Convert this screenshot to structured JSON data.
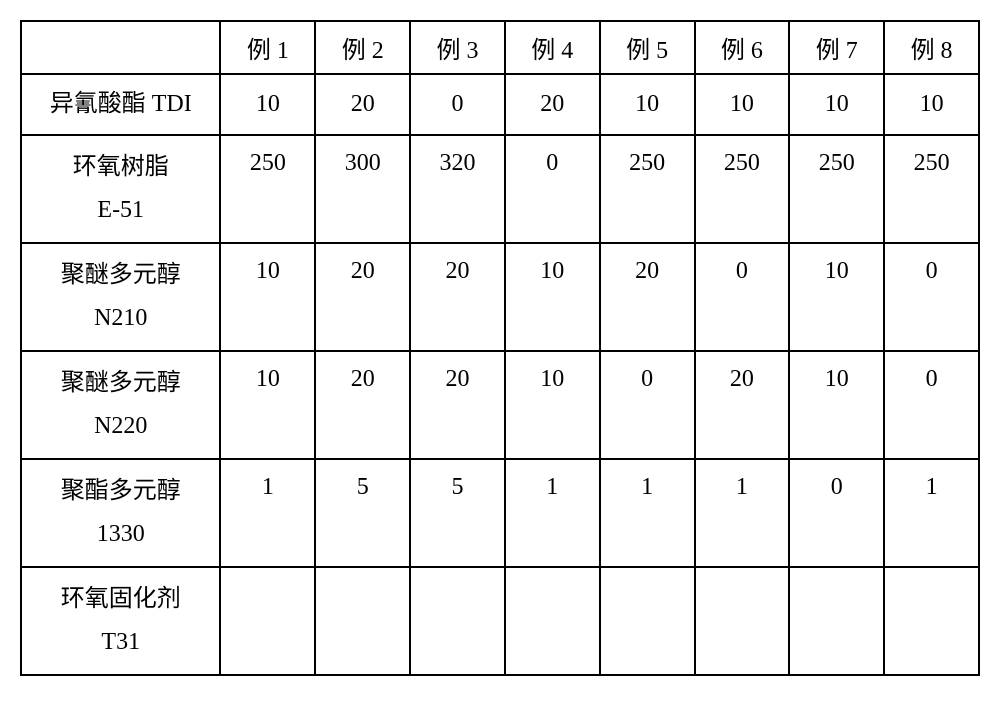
{
  "table": {
    "columns": [
      "",
      "例 1",
      "例 2",
      "例 3",
      "例 4",
      "例 5",
      "例 6",
      "例 7",
      "例 8"
    ],
    "rows": [
      {
        "label": "异氰酸酯 TDI",
        "height": "h-short",
        "values": [
          "10",
          "20",
          "0",
          "20",
          "10",
          "10",
          "10",
          "10"
        ]
      },
      {
        "label": "环氧树脂\nE-51",
        "height": "h-tall",
        "values": [
          "250",
          "300",
          "320",
          "0",
          "250",
          "250",
          "250",
          "250"
        ]
      },
      {
        "label": "聚醚多元醇\nN210",
        "height": "h-tall",
        "values": [
          "10",
          "20",
          "20",
          "10",
          "20",
          "0",
          "10",
          "0"
        ]
      },
      {
        "label": "聚醚多元醇\nN220",
        "height": "h-tall",
        "values": [
          "10",
          "20",
          "20",
          "10",
          "0",
          "20",
          "10",
          "0"
        ]
      },
      {
        "label": "聚酯多元醇\n1330",
        "height": "h-tall",
        "values": [
          "1",
          "5",
          "5",
          "1",
          "1",
          "1",
          "0",
          "1"
        ]
      },
      {
        "label": "环氧固化剂\nT31",
        "height": "h-tall",
        "values": [
          "",
          "",
          "",
          "",
          "",
          "",
          "",
          ""
        ]
      }
    ],
    "styles": {
      "border_color": "#000000",
      "background_color": "#ffffff",
      "text_color": "#000000",
      "font_size": 24,
      "header_col_width": 200,
      "data_col_width": 95
    }
  }
}
